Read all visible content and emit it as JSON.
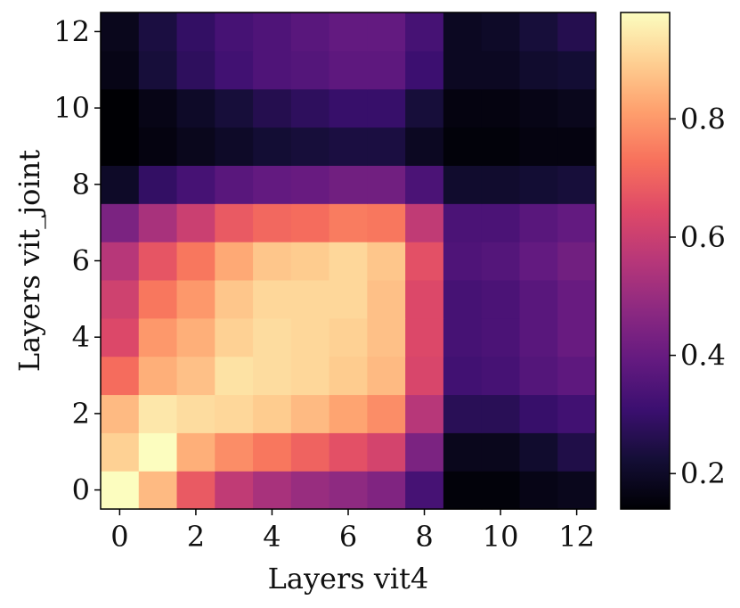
{
  "chart_data": {
    "type": "heatmap",
    "xlabel": "Layers vit4",
    "ylabel": "Layers vit_joint",
    "x_ticks": [
      "0",
      "2",
      "4",
      "6",
      "8",
      "10",
      "12"
    ],
    "y_ticks": [
      "0",
      "2",
      "4",
      "6",
      "8",
      "10",
      "12"
    ],
    "colorbar_ticks": [
      "0.2",
      "0.4",
      "0.6",
      "0.8"
    ],
    "colorbar_range": [
      0.14,
      0.98
    ],
    "colormap": "magma",
    "origin": "lower",
    "x": [
      0,
      1,
      2,
      3,
      4,
      5,
      6,
      7,
      8,
      9,
      10,
      11,
      12
    ],
    "y": [
      0,
      1,
      2,
      3,
      4,
      5,
      6,
      7,
      8,
      9,
      10,
      11,
      12
    ],
    "values": [
      [
        0.98,
        0.86,
        0.68,
        0.58,
        0.53,
        0.5,
        0.48,
        0.45,
        0.33,
        0.15,
        0.15,
        0.17,
        0.18
      ],
      [
        0.9,
        0.98,
        0.84,
        0.78,
        0.74,
        0.7,
        0.66,
        0.62,
        0.44,
        0.18,
        0.18,
        0.21,
        0.25
      ],
      [
        0.86,
        0.94,
        0.92,
        0.91,
        0.89,
        0.86,
        0.82,
        0.78,
        0.56,
        0.27,
        0.27,
        0.3,
        0.32
      ],
      [
        0.72,
        0.84,
        0.87,
        0.93,
        0.92,
        0.91,
        0.89,
        0.86,
        0.63,
        0.32,
        0.33,
        0.36,
        0.38
      ],
      [
        0.64,
        0.8,
        0.84,
        0.9,
        0.92,
        0.91,
        0.9,
        0.87,
        0.64,
        0.33,
        0.34,
        0.37,
        0.4
      ],
      [
        0.61,
        0.74,
        0.8,
        0.88,
        0.91,
        0.91,
        0.91,
        0.87,
        0.64,
        0.33,
        0.34,
        0.37,
        0.4
      ],
      [
        0.56,
        0.67,
        0.74,
        0.83,
        0.88,
        0.89,
        0.91,
        0.88,
        0.66,
        0.35,
        0.36,
        0.39,
        0.42
      ],
      [
        0.44,
        0.53,
        0.6,
        0.68,
        0.71,
        0.72,
        0.75,
        0.74,
        0.58,
        0.34,
        0.34,
        0.37,
        0.39
      ],
      [
        0.2,
        0.29,
        0.33,
        0.37,
        0.39,
        0.4,
        0.42,
        0.42,
        0.34,
        0.21,
        0.21,
        0.22,
        0.23
      ],
      [
        0.14,
        0.16,
        0.18,
        0.2,
        0.22,
        0.23,
        0.24,
        0.24,
        0.19,
        0.15,
        0.15,
        0.16,
        0.16
      ],
      [
        0.14,
        0.17,
        0.2,
        0.23,
        0.26,
        0.28,
        0.3,
        0.3,
        0.23,
        0.16,
        0.16,
        0.17,
        0.18
      ],
      [
        0.17,
        0.23,
        0.28,
        0.32,
        0.35,
        0.36,
        0.38,
        0.38,
        0.31,
        0.19,
        0.19,
        0.21,
        0.22
      ],
      [
        0.18,
        0.24,
        0.29,
        0.33,
        0.35,
        0.37,
        0.39,
        0.39,
        0.33,
        0.19,
        0.2,
        0.23,
        0.26
      ]
    ]
  }
}
